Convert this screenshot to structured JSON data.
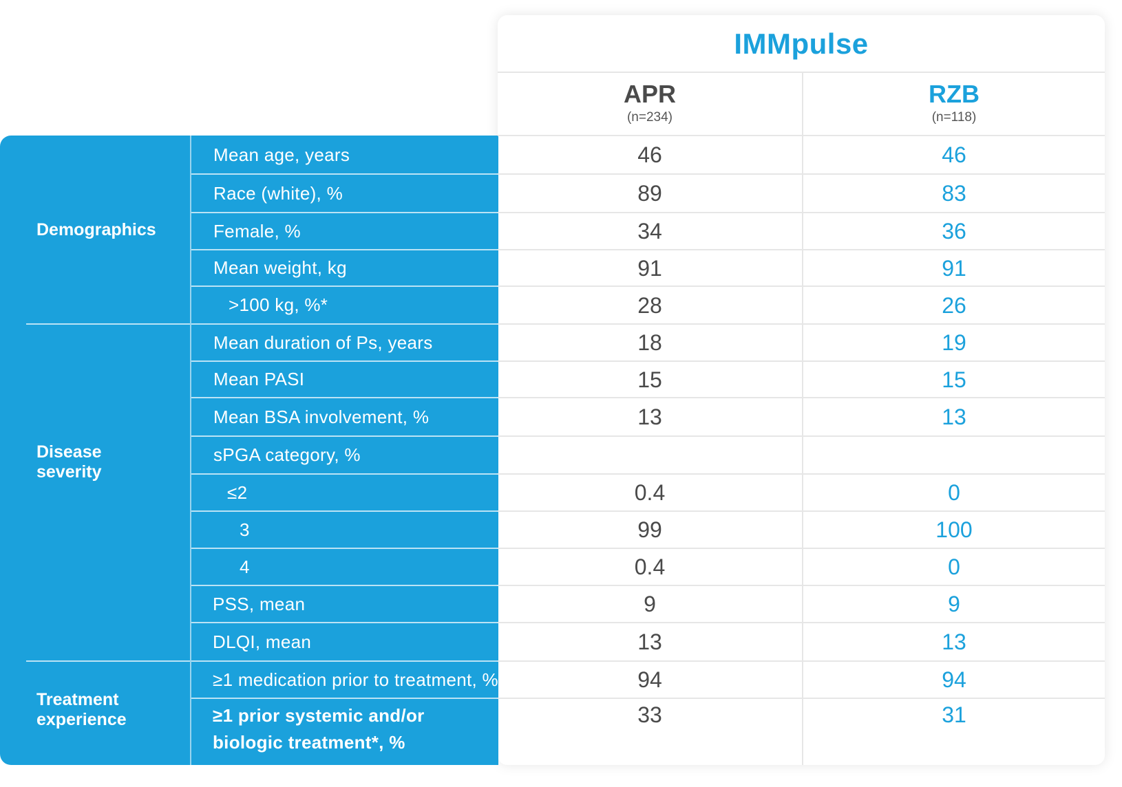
{
  "study": {
    "title": "IMMpulse"
  },
  "arms": [
    {
      "name": "APR",
      "n": "(n=234)"
    },
    {
      "name": "RZB",
      "n": "(n=118)"
    }
  ],
  "colors": {
    "accent": "#1ba1dc",
    "apr_text": "#4a4a4a",
    "divider": "#e6e6e6"
  },
  "categories": [
    {
      "label": "Demographics"
    },
    {
      "label": "Disease severity"
    },
    {
      "label": "Treatment experience"
    }
  ],
  "rows": [
    {
      "label": "Mean age, years",
      "apr": "46",
      "rzb": "46"
    },
    {
      "label": "Race (white), %",
      "apr": "89",
      "rzb": "83"
    },
    {
      "label": "Female, %",
      "apr": "34",
      "rzb": "36"
    },
    {
      "label": "Mean weight, kg",
      "apr": "91",
      "rzb": "91"
    },
    {
      "label": ">100 kg, %*",
      "apr": "28",
      "rzb": "26"
    },
    {
      "label": "Mean duration of Ps, years",
      "apr": "18",
      "rzb": "19"
    },
    {
      "label": "Mean PASI",
      "apr": "15",
      "rzb": "15"
    },
    {
      "label": "Mean BSA involvement, %",
      "apr": "13",
      "rzb": "13"
    },
    {
      "label": "sPGA category, %",
      "apr": "",
      "rzb": ""
    },
    {
      "label": "≤2",
      "apr": "0.4",
      "rzb": "0"
    },
    {
      "label": "3",
      "apr": "99",
      "rzb": "100"
    },
    {
      "label": "4",
      "apr": "0.4",
      "rzb": "0"
    },
    {
      "label": "PSS, mean",
      "apr": "9",
      "rzb": "9"
    },
    {
      "label": "DLQI, mean",
      "apr": "13",
      "rzb": "13"
    },
    {
      "label": "≥1 medication prior to treatment, %",
      "apr": "94",
      "rzb": "94"
    },
    {
      "label": "≥1 prior systemic and/or biologic treatment*, %",
      "apr": "33",
      "rzb": "31"
    }
  ]
}
